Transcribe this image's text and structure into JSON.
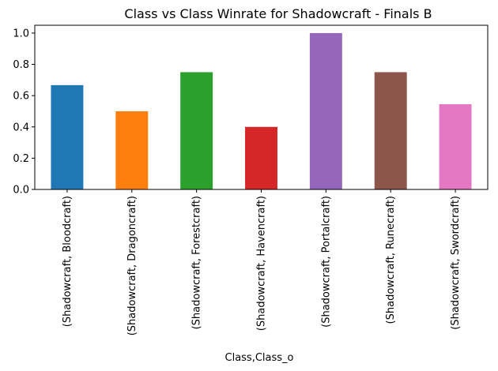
{
  "chart_data": {
    "type": "bar",
    "title": "Class vs Class Winrate for Shadowcraft - Finals B",
    "xlabel": "Class,Class_o",
    "ylabel": "",
    "ylim": [
      0,
      1.05
    ],
    "yticks": [
      "0.0",
      "0.2",
      "0.4",
      "0.6",
      "0.8",
      "1.0"
    ],
    "grid": false,
    "legend": "none",
    "categories": [
      "(Shadowcraft, Bloodcraft)",
      "(Shadowcraft, Dragoncraft)",
      "(Shadowcraft, Forestcraft)",
      "(Shadowcraft, Havencraft)",
      "(Shadowcraft, Portalcraft)",
      "(Shadowcraft, Runecraft)",
      "(Shadowcraft, Swordcraft)"
    ],
    "values": [
      0.667,
      0.5,
      0.75,
      0.4,
      1.0,
      0.75,
      0.545
    ],
    "colors": [
      "#1f77b4",
      "#ff7f0e",
      "#2ca02c",
      "#d62728",
      "#9467bd",
      "#8c564b",
      "#e377c2"
    ]
  }
}
